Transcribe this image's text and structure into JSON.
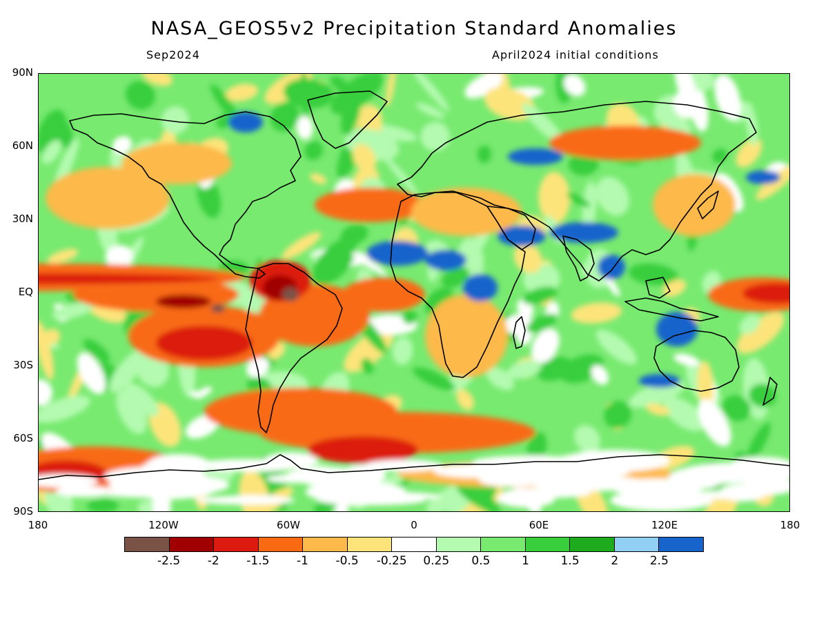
{
  "map": {
    "title": "NASA_GEOS5v2 Precipitation Standard Anomalies",
    "subtitle_left": "Sep2024",
    "subtitle_right": "April2024 initial conditions",
    "lat_labels": [
      "90N",
      "60N",
      "30N",
      "EQ",
      "30S",
      "60S",
      "90S"
    ],
    "lon_labels": [
      "180",
      "120W",
      "60W",
      "0",
      "60E",
      "120E",
      "180"
    ],
    "legend": {
      "colors": [
        "#7a5346",
        "#a00000",
        "#dc1a10",
        "#f96a12",
        "#fdb94a",
        "#fde47a",
        "#ffffff",
        "#b4fab0",
        "#78ea70",
        "#38ce3c",
        "#1eac1e",
        "#92cff5",
        "#1764cc"
      ],
      "labels": [
        "-2.5",
        "-2",
        "-1.5",
        "-1",
        "-0.5",
        "-0.25",
        "0.25",
        "0.5",
        "1",
        "1.5",
        "2",
        "2.5"
      ]
    },
    "colors": {
      "pos_light": "#b4fab0",
      "pos_mid": "#78ea70",
      "pos_strong": "#38ce3c",
      "pos_blue": "#1764cc",
      "neg_light": "#fde47a",
      "neg_mid": "#fdb94a",
      "neg_orange": "#f96a12",
      "neg_red": "#dc1a10",
      "neg_dark": "#a00000",
      "neg_brown": "#7a5346",
      "coast": "#000000"
    }
  }
}
